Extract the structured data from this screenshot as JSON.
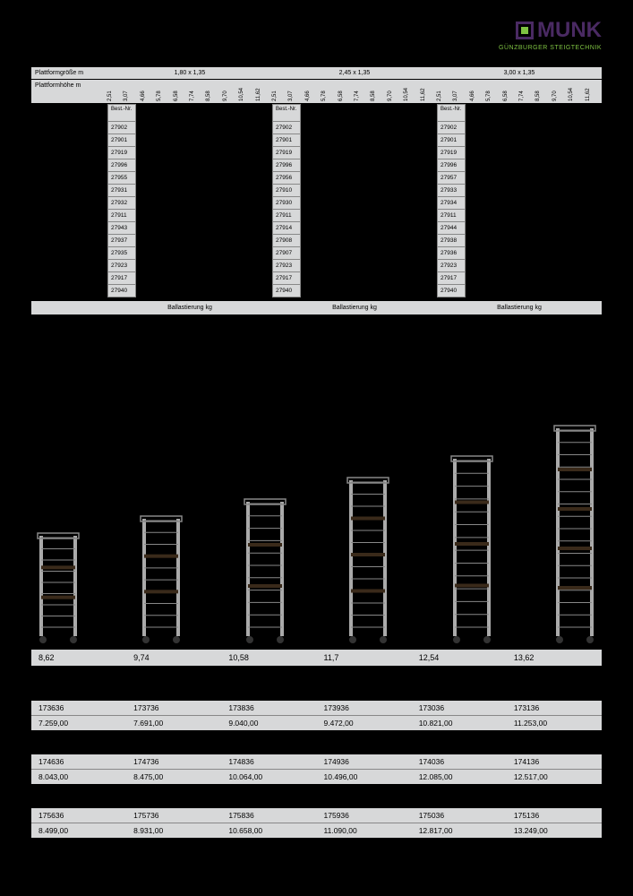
{
  "logo": {
    "text": "MUNK",
    "sub": "GÜNZBURGER STEIGTECHNIK"
  },
  "sizes_label": "Plattformgröße m",
  "heights_label": "Plattformhöhe m",
  "sizes": [
    "1,80 x 1,35",
    "2,45 x 1,35",
    "3,00 x 1,35"
  ],
  "heights": [
    "2,51",
    "3,07",
    "4,66",
    "5,78",
    "6,58",
    "7,74",
    "8,58",
    "9,70",
    "10,54",
    "11,62"
  ],
  "bestnr_label": "Best.-Nr.",
  "bestnr_cols": [
    [
      "27902",
      "27901",
      "27919",
      "27996",
      "27955",
      "27931",
      "27932",
      "27911",
      "27943",
      "27937",
      "27935",
      "27923",
      "27917",
      "27940"
    ],
    [
      "27902",
      "27901",
      "27919",
      "27996",
      "27956",
      "27910",
      "27930",
      "27911",
      "27914",
      "27908",
      "27907",
      "27923",
      "27917",
      "27940"
    ],
    [
      "27902",
      "27901",
      "27919",
      "27996",
      "27957",
      "27933",
      "27934",
      "27911",
      "27944",
      "27938",
      "27936",
      "27923",
      "27917",
      "27940"
    ]
  ],
  "ballast_label": "Ballastierung kg",
  "tower_heights": [
    "8,62",
    "9,74",
    "10,58",
    "11,7",
    "12,54",
    "13,62"
  ],
  "tower_scale": [
    0.5,
    0.58,
    0.66,
    0.76,
    0.86,
    1.0
  ],
  "price_groups": [
    {
      "codes": [
        "173636",
        "173736",
        "173836",
        "173936",
        "173036",
        "173136"
      ],
      "prices": [
        "7.259,00",
        "7.691,00",
        "9.040,00",
        "9.472,00",
        "10.821,00",
        "11.253,00"
      ]
    },
    {
      "codes": [
        "174636",
        "174736",
        "174836",
        "174936",
        "174036",
        "174136"
      ],
      "prices": [
        "8.043,00",
        "8.475,00",
        "10.064,00",
        "10.496,00",
        "12.085,00",
        "12.517,00"
      ]
    },
    {
      "codes": [
        "175636",
        "175736",
        "175836",
        "175936",
        "175036",
        "175136"
      ],
      "prices": [
        "8.499,00",
        "8.931,00",
        "10.658,00",
        "11.090,00",
        "12.817,00",
        "13.249,00"
      ]
    }
  ]
}
